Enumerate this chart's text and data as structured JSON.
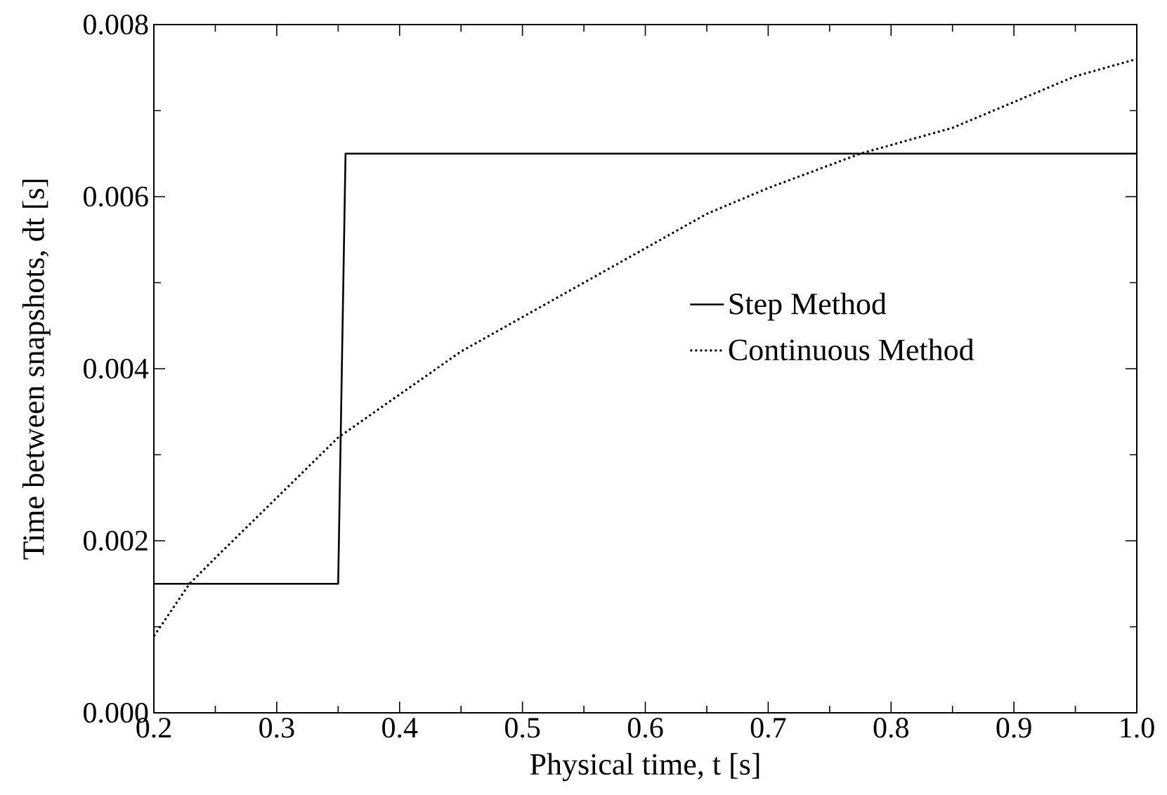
{
  "chart_data": {
    "type": "line",
    "xlabel": "Physical time, t [s]",
    "ylabel": "Time between snapshots, dt [s]",
    "xlim": [
      0.2,
      1.0
    ],
    "ylim": [
      0,
      0.008
    ],
    "xticks": [
      0.2,
      {
        "value": 0.25,
        "label": null
      },
      0.3,
      {
        "value": 0.35,
        "label": null
      },
      0.4,
      {
        "value": 0.45,
        "label": null
      },
      0.5,
      {
        "value": 0.55,
        "label": null
      },
      0.6,
      {
        "value": 0.65,
        "label": null
      },
      0.7,
      {
        "value": 0.75,
        "label": null
      },
      0.8,
      {
        "value": 0.85,
        "label": null
      },
      0.9,
      {
        "value": 0.95,
        "label": null
      },
      {
        "value": 1.0,
        "label": "1.0"
      }
    ],
    "yticks": [
      {
        "value": 0,
        "label": "0.000"
      },
      {
        "value": 0.001,
        "label": null
      },
      {
        "value": 0.002,
        "label": "0.002"
      },
      {
        "value": 0.003,
        "label": null
      },
      {
        "value": 0.004,
        "label": "0.004"
      },
      {
        "value": 0.005,
        "label": null
      },
      {
        "value": 0.006,
        "label": "0.006"
      },
      {
        "value": 0.007,
        "label": null
      },
      {
        "value": 0.008,
        "label": "0.008"
      }
    ],
    "legend": "right",
    "grid": false,
    "series": [
      {
        "name": "Step Method",
        "color": "#000000",
        "line_style": "solid",
        "x": [
          0.2,
          0.35,
          0.356,
          1.0
        ],
        "values": [
          0.0015,
          0.0015,
          0.0065,
          0.0065
        ]
      },
      {
        "name": "Continuous Method",
        "color": "#000000",
        "line_style": "dotted",
        "x": [
          0.2,
          0.229,
          0.25,
          0.3,
          0.35,
          0.4,
          0.45,
          0.5,
          0.55,
          0.6,
          0.65,
          0.7,
          0.775,
          0.85,
          0.9,
          0.95,
          1.0
        ],
        "values": [
          0.00089,
          0.0015,
          0.0018,
          0.0025,
          0.0032,
          0.0037,
          0.0042,
          0.0046,
          0.005,
          0.0054,
          0.0058,
          0.0061,
          0.0065,
          0.0068,
          0.0071,
          0.0074,
          0.0076
        ]
      }
    ]
  }
}
